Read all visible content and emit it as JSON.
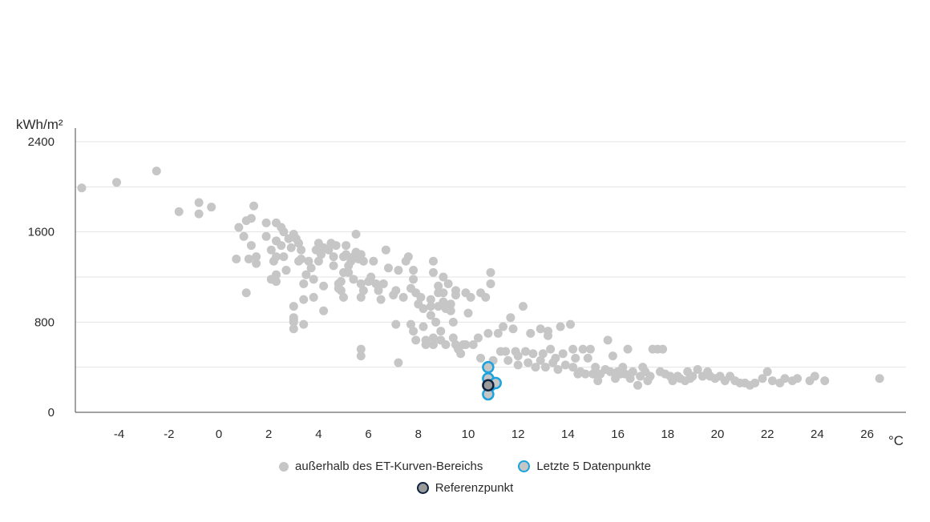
{
  "chart_data": {
    "type": "scatter",
    "ylabel": "kWh/m²",
    "xlabel": "°C",
    "xlim": [
      -5.7,
      27.5
    ],
    "ylim": [
      0,
      2400
    ],
    "x_ticks": [
      -4,
      -2,
      0,
      2,
      4,
      6,
      8,
      10,
      12,
      14,
      16,
      18,
      20,
      22,
      24,
      26
    ],
    "y_ticks": [
      0,
      800,
      1600,
      2400
    ],
    "y_gridlines": [
      400,
      800,
      1200,
      1600,
      2000,
      2400
    ],
    "grid": "horizontal",
    "legend_position": "bottom",
    "series": [
      {
        "name": "außerhalb des ET-Kurven-Bereichs",
        "color": "#c6c6c6",
        "points": [
          [
            -5.5,
            1990
          ],
          [
            -4.1,
            2040
          ],
          [
            -2.5,
            2140
          ],
          [
            -1.6,
            1780
          ],
          [
            -0.8,
            1860
          ],
          [
            -0.8,
            1760
          ],
          [
            -0.3,
            1820
          ],
          [
            0.7,
            1360
          ],
          [
            0.8,
            1640
          ],
          [
            1.0,
            1560
          ],
          [
            1.1,
            1700
          ],
          [
            1.1,
            1060
          ],
          [
            1.2,
            1360
          ],
          [
            1.3,
            1480
          ],
          [
            1.3,
            1720
          ],
          [
            1.4,
            1830
          ],
          [
            1.5,
            1320
          ],
          [
            1.5,
            1380
          ],
          [
            1.9,
            1560
          ],
          [
            1.9,
            1680
          ],
          [
            2.1,
            1440
          ],
          [
            2.1,
            1180
          ],
          [
            2.2,
            1340
          ],
          [
            2.3,
            1380
          ],
          [
            2.3,
            1520
          ],
          [
            2.3,
            1680
          ],
          [
            2.3,
            1220
          ],
          [
            2.3,
            1160
          ],
          [
            2.5,
            1480
          ],
          [
            2.5,
            1640
          ],
          [
            2.6,
            1380
          ],
          [
            2.6,
            1600
          ],
          [
            2.7,
            1260
          ],
          [
            2.8,
            1540
          ],
          [
            2.9,
            1460
          ],
          [
            3.0,
            1580
          ],
          [
            3.0,
            940
          ],
          [
            3.0,
            840
          ],
          [
            3.0,
            820
          ],
          [
            3.0,
            800
          ],
          [
            3.0,
            740
          ],
          [
            3.1,
            1540
          ],
          [
            3.2,
            1340
          ],
          [
            3.2,
            1500
          ],
          [
            3.3,
            1440
          ],
          [
            3.3,
            1360
          ],
          [
            3.4,
            1140
          ],
          [
            3.4,
            1000
          ],
          [
            3.4,
            780
          ],
          [
            3.5,
            1220
          ],
          [
            3.6,
            1340
          ],
          [
            3.7,
            1280
          ],
          [
            3.8,
            1180
          ],
          [
            3.8,
            1020
          ],
          [
            3.9,
            1440
          ],
          [
            4.0,
            1340
          ],
          [
            4.0,
            1500
          ],
          [
            4.1,
            1400
          ],
          [
            4.2,
            1460
          ],
          [
            4.2,
            1120
          ],
          [
            4.2,
            900
          ],
          [
            4.4,
            1440
          ],
          [
            4.5,
            1500
          ],
          [
            4.6,
            1380
          ],
          [
            4.6,
            1300
          ],
          [
            4.7,
            1480
          ],
          [
            4.8,
            1100
          ],
          [
            4.8,
            1140
          ],
          [
            4.9,
            1080
          ],
          [
            4.9,
            1160
          ],
          [
            5.0,
            1380
          ],
          [
            5.0,
            1240
          ],
          [
            5.0,
            1020
          ],
          [
            5.1,
            1480
          ],
          [
            5.1,
            1400
          ],
          [
            5.2,
            1300
          ],
          [
            5.2,
            1240
          ],
          [
            5.3,
            1340
          ],
          [
            5.4,
            1380
          ],
          [
            5.4,
            1180
          ],
          [
            5.5,
            1420
          ],
          [
            5.5,
            1580
          ],
          [
            5.6,
            1360
          ],
          [
            5.7,
            1140
          ],
          [
            5.7,
            1020
          ],
          [
            5.7,
            1400
          ],
          [
            5.7,
            560
          ],
          [
            5.7,
            500
          ],
          [
            5.8,
            1080
          ],
          [
            5.8,
            1340
          ],
          [
            6.0,
            1160
          ],
          [
            6.1,
            1200
          ],
          [
            6.2,
            1340
          ],
          [
            6.3,
            1140
          ],
          [
            6.4,
            1080
          ],
          [
            6.5,
            1000
          ],
          [
            6.6,
            1140
          ],
          [
            6.7,
            1440
          ],
          [
            6.8,
            1280
          ],
          [
            7.0,
            1040
          ],
          [
            7.1,
            1080
          ],
          [
            7.1,
            780
          ],
          [
            7.2,
            1260
          ],
          [
            7.2,
            440
          ],
          [
            7.4,
            1020
          ],
          [
            7.5,
            1340
          ],
          [
            7.6,
            1380
          ],
          [
            7.7,
            780
          ],
          [
            7.7,
            1100
          ],
          [
            7.8,
            1180
          ],
          [
            7.8,
            1260
          ],
          [
            7.8,
            720
          ],
          [
            7.9,
            640
          ],
          [
            7.9,
            1060
          ],
          [
            8.0,
            960
          ],
          [
            8.1,
            1020
          ],
          [
            8.2,
            920
          ],
          [
            8.2,
            760
          ],
          [
            8.3,
            640
          ],
          [
            8.3,
            600
          ],
          [
            8.5,
            940
          ],
          [
            8.5,
            1000
          ],
          [
            8.5,
            860
          ],
          [
            8.6,
            1340
          ],
          [
            8.6,
            1240
          ],
          [
            8.6,
            660
          ],
          [
            8.6,
            600
          ],
          [
            8.7,
            800
          ],
          [
            8.8,
            1120
          ],
          [
            8.8,
            1060
          ],
          [
            8.8,
            940
          ],
          [
            8.9,
            720
          ],
          [
            8.9,
            640
          ],
          [
            9.0,
            1200
          ],
          [
            9.0,
            1060
          ],
          [
            9.0,
            980
          ],
          [
            9.1,
            920
          ],
          [
            9.1,
            600
          ],
          [
            9.2,
            1140
          ],
          [
            9.3,
            960
          ],
          [
            9.3,
            900
          ],
          [
            9.4,
            800
          ],
          [
            9.4,
            660
          ],
          [
            9.5,
            1080
          ],
          [
            9.5,
            1040
          ],
          [
            9.5,
            600
          ],
          [
            9.6,
            560
          ],
          [
            9.7,
            520
          ],
          [
            9.8,
            600
          ],
          [
            9.9,
            1060
          ],
          [
            9.9,
            600
          ],
          [
            10.0,
            880
          ],
          [
            10.1,
            1020
          ],
          [
            10.2,
            600
          ],
          [
            10.4,
            660
          ],
          [
            10.5,
            1060
          ],
          [
            10.5,
            480
          ],
          [
            10.7,
            1020
          ],
          [
            10.8,
            700
          ],
          [
            10.9,
            1140
          ],
          [
            10.9,
            1240
          ],
          [
            11.0,
            460
          ],
          [
            11.2,
            700
          ],
          [
            11.3,
            540
          ],
          [
            11.4,
            760
          ],
          [
            11.5,
            540
          ],
          [
            11.6,
            460
          ],
          [
            11.7,
            840
          ],
          [
            11.8,
            740
          ],
          [
            11.9,
            540
          ],
          [
            12.0,
            500
          ],
          [
            12.0,
            420
          ],
          [
            12.2,
            940
          ],
          [
            12.3,
            540
          ],
          [
            12.4,
            440
          ],
          [
            12.5,
            700
          ],
          [
            12.6,
            520
          ],
          [
            12.7,
            400
          ],
          [
            12.9,
            740
          ],
          [
            12.9,
            460
          ],
          [
            13.0,
            520
          ],
          [
            13.1,
            400
          ],
          [
            13.2,
            720
          ],
          [
            13.2,
            680
          ],
          [
            13.3,
            560
          ],
          [
            13.4,
            440
          ],
          [
            13.5,
            480
          ],
          [
            13.6,
            380
          ],
          [
            13.7,
            760
          ],
          [
            13.8,
            520
          ],
          [
            13.9,
            420
          ],
          [
            14.1,
            780
          ],
          [
            14.2,
            560
          ],
          [
            14.2,
            400
          ],
          [
            14.3,
            480
          ],
          [
            14.4,
            340
          ],
          [
            14.5,
            360
          ],
          [
            14.6,
            560
          ],
          [
            14.7,
            340
          ],
          [
            14.8,
            480
          ],
          [
            14.9,
            560
          ],
          [
            15.0,
            340
          ],
          [
            15.1,
            400
          ],
          [
            15.2,
            280
          ],
          [
            15.3,
            340
          ],
          [
            15.5,
            380
          ],
          [
            15.6,
            640
          ],
          [
            15.7,
            360
          ],
          [
            15.8,
            500
          ],
          [
            15.9,
            300
          ],
          [
            16.0,
            360
          ],
          [
            16.1,
            340
          ],
          [
            16.2,
            400
          ],
          [
            16.3,
            340
          ],
          [
            16.4,
            560
          ],
          [
            16.5,
            300
          ],
          [
            16.6,
            360
          ],
          [
            16.8,
            240
          ],
          [
            16.9,
            320
          ],
          [
            17.0,
            400
          ],
          [
            17.1,
            360
          ],
          [
            17.2,
            280
          ],
          [
            17.3,
            320
          ],
          [
            17.4,
            560
          ],
          [
            17.6,
            560
          ],
          [
            17.7,
            360
          ],
          [
            17.8,
            560
          ],
          [
            17.9,
            340
          ],
          [
            18.1,
            320
          ],
          [
            18.2,
            280
          ],
          [
            18.4,
            320
          ],
          [
            18.5,
            300
          ],
          [
            18.7,
            280
          ],
          [
            18.8,
            360
          ],
          [
            18.9,
            300
          ],
          [
            19.0,
            320
          ],
          [
            19.2,
            380
          ],
          [
            19.4,
            320
          ],
          [
            19.6,
            360
          ],
          [
            19.7,
            320
          ],
          [
            19.9,
            300
          ],
          [
            20.1,
            320
          ],
          [
            20.3,
            280
          ],
          [
            20.5,
            320
          ],
          [
            20.7,
            280
          ],
          [
            20.9,
            260
          ],
          [
            21.1,
            260
          ],
          [
            21.3,
            240
          ],
          [
            21.5,
            260
          ],
          [
            21.8,
            300
          ],
          [
            22.0,
            360
          ],
          [
            22.2,
            280
          ],
          [
            22.5,
            260
          ],
          [
            22.7,
            300
          ],
          [
            23.0,
            280
          ],
          [
            23.2,
            300
          ],
          [
            23.7,
            280
          ],
          [
            23.9,
            320
          ],
          [
            24.3,
            280
          ],
          [
            26.5,
            300
          ]
        ]
      },
      {
        "name": "Letzte 5 Datenpunkte",
        "color": "#c6c6c6",
        "outline": "#1aa3dc",
        "points": [
          [
            10.8,
            400
          ],
          [
            10.8,
            300
          ],
          [
            10.9,
            240
          ],
          [
            11.1,
            260
          ],
          [
            10.8,
            160
          ]
        ]
      },
      {
        "name": "Referenzpunkt",
        "color": "#9a9a9a",
        "outline": "#0c2340",
        "points": [
          [
            10.8,
            240
          ]
        ]
      }
    ]
  }
}
